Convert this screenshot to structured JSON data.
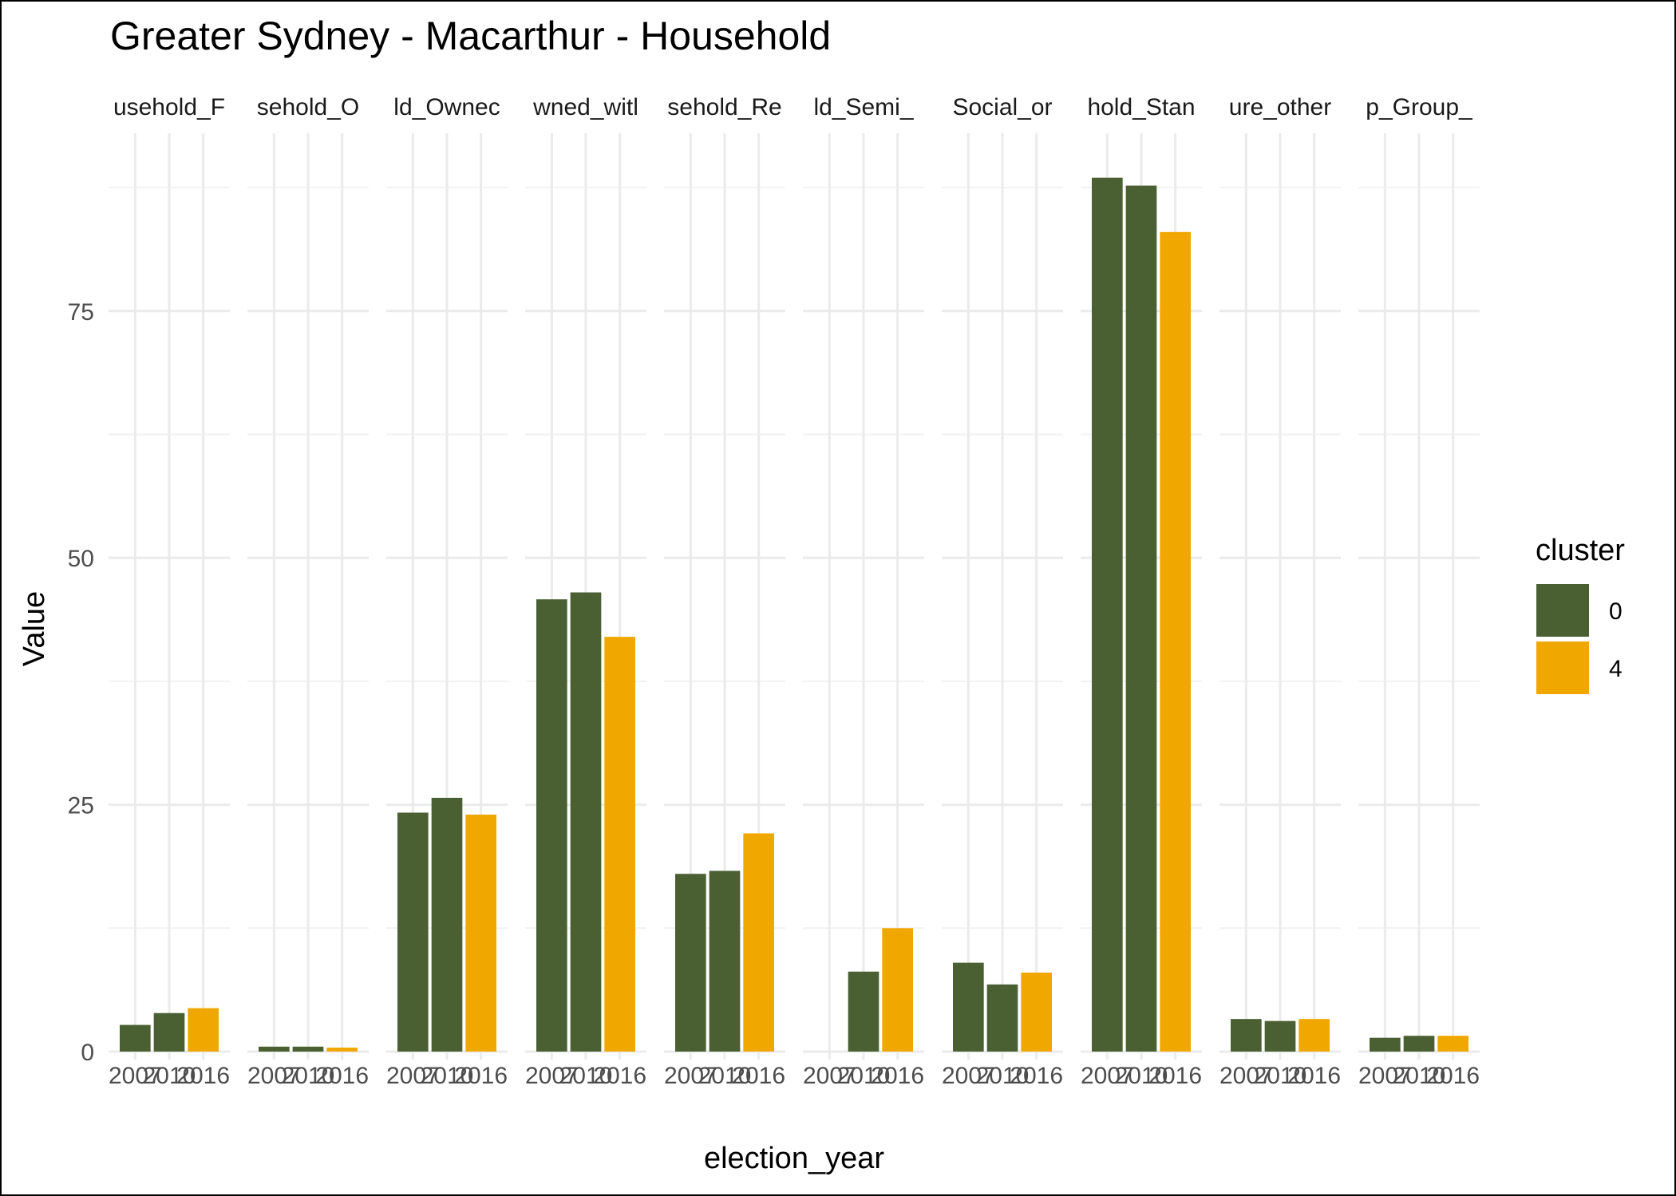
{
  "chart_data": {
    "type": "bar",
    "title": "Greater Sydney - Macarthur - Household",
    "xlabel": "election_year",
    "ylabel": "Value",
    "ylim": [
      0,
      93
    ],
    "yticks": [
      0,
      25,
      50,
      75
    ],
    "categories": [
      "2007",
      "2010",
      "2016"
    ],
    "grid": true,
    "legend": {
      "title": "cluster",
      "position": "right",
      "entries": [
        {
          "name": "0",
          "color": "#4a6032"
        },
        {
          "name": "4",
          "color": "#f0a800"
        }
      ]
    },
    "bar_cluster": [
      "0",
      "0",
      "4"
    ],
    "panels": [
      {
        "label": "usehold_F",
        "values": [
          2.7,
          3.9,
          4.4
        ]
      },
      {
        "label": "sehold_O",
        "values": [
          0.5,
          0.5,
          0.4
        ]
      },
      {
        "label": "ld_Ownec",
        "values": [
          24.2,
          25.7,
          24.0
        ]
      },
      {
        "label": "wned_witl",
        "values": [
          45.8,
          46.5,
          42.0
        ]
      },
      {
        "label": "sehold_Re",
        "values": [
          18.0,
          18.3,
          22.1
        ]
      },
      {
        "label": "ld_Semi_",
        "values": [
          null,
          8.1,
          12.5
        ]
      },
      {
        "label": "Social_or",
        "values": [
          9.0,
          6.8,
          8.0
        ]
      },
      {
        "label": "hold_Stan",
        "values": [
          88.5,
          87.7,
          83.0
        ]
      },
      {
        "label": "ure_other",
        "values": [
          3.3,
          3.1,
          3.3
        ]
      },
      {
        "label": "p_Group_",
        "values": [
          1.4,
          1.6,
          1.6
        ]
      }
    ]
  }
}
